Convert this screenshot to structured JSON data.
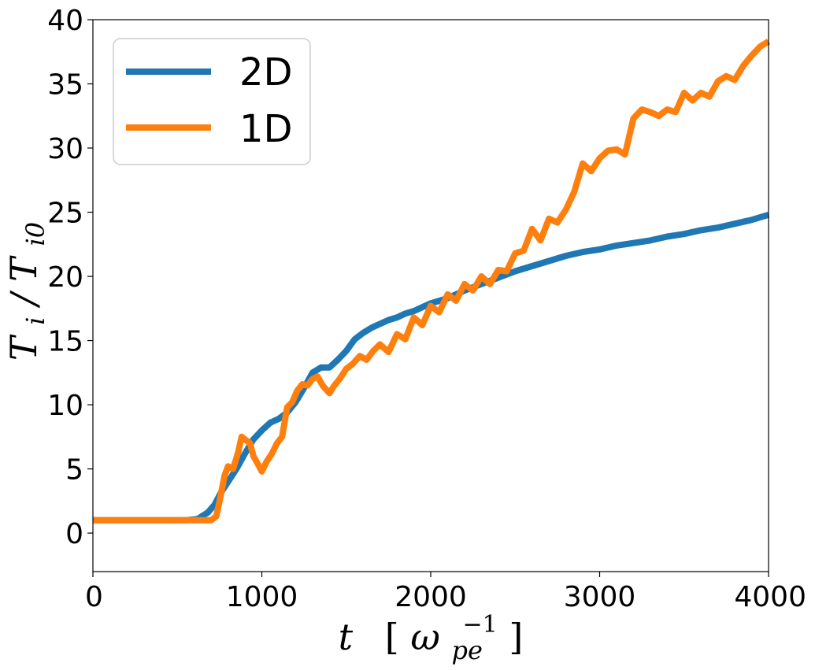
{
  "chart_data": {
    "type": "line",
    "title": "",
    "xlabel": {
      "main": "t",
      "bracket_open": "[",
      "sym": "ω",
      "sub": "pe",
      "sup": "−1",
      "bracket_close": "]"
    },
    "ylabel": {
      "t1": "T",
      "s1": "i",
      "slash": "/",
      "t2": "T",
      "s2": "i0"
    },
    "xlim": [
      0,
      4000
    ],
    "ylim": [
      -3,
      40
    ],
    "xticks": [
      0,
      1000,
      2000,
      3000,
      4000
    ],
    "yticks": [
      0,
      5,
      10,
      15,
      20,
      25,
      30,
      35,
      40
    ],
    "grid": false,
    "legend": {
      "placement": "top-left",
      "entries": [
        "2D",
        "1D"
      ]
    },
    "colors": {
      "2D": "#1f77b4",
      "1D": "#ff7f0e"
    },
    "series": [
      {
        "name": "2D",
        "x": [
          0,
          200,
          400,
          550,
          620,
          680,
          720,
          760,
          800,
          850,
          900,
          950,
          1000,
          1050,
          1100,
          1150,
          1200,
          1250,
          1300,
          1350,
          1400,
          1450,
          1500,
          1550,
          1600,
          1650,
          1700,
          1750,
          1800,
          1850,
          1900,
          1950,
          2000,
          2100,
          2200,
          2300,
          2400,
          2500,
          2600,
          2700,
          2800,
          2900,
          3000,
          3100,
          3200,
          3300,
          3400,
          3500,
          3600,
          3700,
          3800,
          3900,
          4000
        ],
        "y": [
          1.0,
          1.0,
          1.0,
          1.0,
          1.1,
          1.6,
          2.2,
          3.2,
          4.0,
          5.0,
          6.2,
          7.3,
          8.0,
          8.6,
          8.9,
          9.4,
          10.2,
          11.3,
          12.5,
          12.9,
          12.9,
          13.5,
          14.2,
          15.1,
          15.6,
          16.0,
          16.3,
          16.6,
          16.8,
          17.1,
          17.3,
          17.6,
          17.9,
          18.3,
          18.9,
          19.4,
          19.9,
          20.4,
          20.8,
          21.2,
          21.6,
          21.9,
          22.1,
          22.4,
          22.6,
          22.8,
          23.1,
          23.3,
          23.6,
          23.8,
          24.1,
          24.4,
          24.8
        ]
      },
      {
        "name": "1D",
        "x": [
          0,
          200,
          400,
          600,
          700,
          730,
          750,
          780,
          800,
          830,
          860,
          880,
          900,
          930,
          950,
          980,
          1000,
          1030,
          1060,
          1090,
          1120,
          1150,
          1180,
          1210,
          1240,
          1270,
          1300,
          1330,
          1360,
          1400,
          1430,
          1460,
          1500,
          1540,
          1580,
          1620,
          1660,
          1700,
          1750,
          1800,
          1850,
          1900,
          1950,
          2000,
          2050,
          2100,
          2150,
          2200,
          2250,
          2300,
          2350,
          2400,
          2450,
          2500,
          2550,
          2600,
          2650,
          2700,
          2750,
          2800,
          2850,
          2900,
          2950,
          3000,
          3050,
          3100,
          3150,
          3200,
          3250,
          3300,
          3350,
          3400,
          3450,
          3500,
          3550,
          3600,
          3650,
          3700,
          3750,
          3800,
          3850,
          3900,
          3950,
          4000
        ],
        "y": [
          1.0,
          1.0,
          1.0,
          1.0,
          1.0,
          1.3,
          2.5,
          4.5,
          5.2,
          5.0,
          6.3,
          7.5,
          7.3,
          7.0,
          6.0,
          5.3,
          4.8,
          5.6,
          6.2,
          7.0,
          7.5,
          9.8,
          10.2,
          11.1,
          11.6,
          11.5,
          12.0,
          12.2,
          11.5,
          10.9,
          11.5,
          12.0,
          12.8,
          13.2,
          13.8,
          13.5,
          14.2,
          14.7,
          14.1,
          15.5,
          15.1,
          16.8,
          16.2,
          17.7,
          17.2,
          18.6,
          18.1,
          19.4,
          18.9,
          20.0,
          19.4,
          20.5,
          20.4,
          21.8,
          22.0,
          23.7,
          22.8,
          24.5,
          24.2,
          25.2,
          26.6,
          28.8,
          28.2,
          29.2,
          29.8,
          29.9,
          29.5,
          32.3,
          33.0,
          32.8,
          32.5,
          33.0,
          32.8,
          34.3,
          33.7,
          34.3,
          34.0,
          35.2,
          35.6,
          35.3,
          36.4,
          37.2,
          37.9,
          38.3
        ]
      }
    ]
  }
}
